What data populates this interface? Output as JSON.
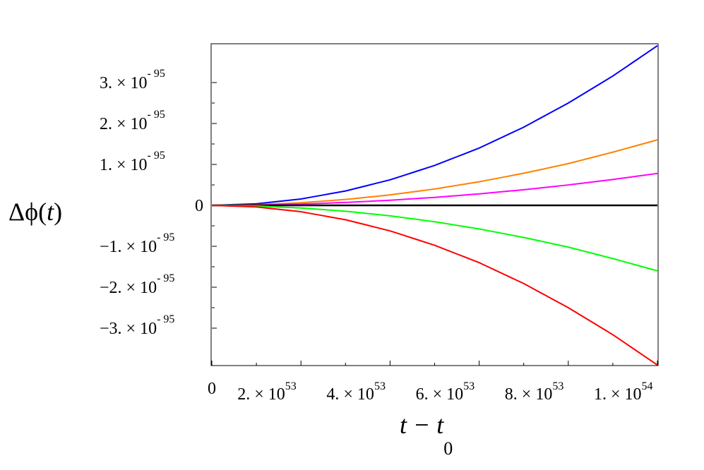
{
  "chart_data": {
    "type": "line",
    "title": "",
    "xlabel": {
      "main": "t − t",
      "subscript": "0"
    },
    "ylabel": {
      "prefix": "Δϕ(",
      "var": "t",
      "suffix": ")"
    },
    "xlim": [
      0,
      1e+54
    ],
    "ylim": [
      -3.9e-95,
      3.9e-95
    ],
    "grid": false,
    "legend": "none",
    "x_ticks": [
      {
        "value": 0,
        "mantissa": "0",
        "base": "",
        "exponent": ""
      },
      {
        "value": 2e+53,
        "mantissa": "2. × ",
        "base": "10",
        "exponent": "53"
      },
      {
        "value": 4e+53,
        "mantissa": "4. × ",
        "base": "10",
        "exponent": "53"
      },
      {
        "value": 6e+53,
        "mantissa": "6. × ",
        "base": "10",
        "exponent": "53"
      },
      {
        "value": 8e+53,
        "mantissa": "8. × ",
        "base": "10",
        "exponent": "53"
      },
      {
        "value": 1e+54,
        "mantissa": "1. × ",
        "base": "10",
        "exponent": "54"
      }
    ],
    "y_ticks": [
      {
        "value": 3e-95,
        "mantissa": "3. × ",
        "base": "10",
        "exponent": "- 95"
      },
      {
        "value": 2e-95,
        "mantissa": "2. × ",
        "base": "10",
        "exponent": "- 95"
      },
      {
        "value": 1e-95,
        "mantissa": "1. × ",
        "base": "10",
        "exponent": "- 95"
      },
      {
        "value": 0,
        "mantissa": "0",
        "base": "",
        "exponent": ""
      },
      {
        "value": -1e-95,
        "mantissa": "−1. × ",
        "base": "10",
        "exponent": "- 95"
      },
      {
        "value": -2e-95,
        "mantissa": "−2. × ",
        "base": "10",
        "exponent": "- 95"
      },
      {
        "value": -3e-95,
        "mantissa": "−3. × ",
        "base": "10",
        "exponent": "- 95"
      }
    ],
    "series": [
      {
        "color": "#0000ff",
        "x": [
          0,
          1e+53,
          2e+53,
          3e+53,
          4e+53,
          5e+53,
          6e+53,
          7e+53,
          8e+53,
          9e+53,
          1e+54
        ],
        "y": [
          0,
          3.9e-97,
          1.56e-96,
          3.51e-96,
          6.24e-96,
          9.75e-96,
          1.4e-95,
          1.91e-95,
          2.5e-95,
          3.16e-95,
          3.9e-95
        ]
      },
      {
        "color": "#ff8000",
        "x": [
          0,
          1e+53,
          2e+53,
          3e+53,
          4e+53,
          5e+53,
          6e+53,
          7e+53,
          8e+53,
          9e+53,
          1e+54
        ],
        "y": [
          0,
          1.6e-97,
          6.4e-97,
          1.44e-96,
          2.56e-96,
          4e-96,
          5.76e-96,
          7.84e-96,
          1.02e-95,
          1.3e-95,
          1.6e-95
        ]
      },
      {
        "color": "#ff00ff",
        "x": [
          0,
          1e+53,
          2e+53,
          3e+53,
          4e+53,
          5e+53,
          6e+53,
          7e+53,
          8e+53,
          9e+53,
          1e+54
        ],
        "y": [
          0,
          7.8e-98,
          3.12e-97,
          7.02e-97,
          1.25e-96,
          1.95e-96,
          2.81e-96,
          3.82e-96,
          4.99e-96,
          6.32e-96,
          7.8e-96
        ]
      },
      {
        "color": "#000000",
        "x": [
          0,
          1e+54
        ],
        "y": [
          0,
          0
        ]
      },
      {
        "color": "#00ff00",
        "x": [
          0,
          1e+53,
          2e+53,
          3e+53,
          4e+53,
          5e+53,
          6e+53,
          7e+53,
          8e+53,
          9e+53,
          1e+54
        ],
        "y": [
          0,
          -1.6e-97,
          -6.4e-97,
          -1.44e-96,
          -2.56e-96,
          -4e-96,
          -5.76e-96,
          -7.84e-96,
          -1.02e-95,
          -1.3e-95,
          -1.6e-95
        ]
      },
      {
        "color": "#ff0000",
        "x": [
          0,
          1e+53,
          2e+53,
          3e+53,
          4e+53,
          5e+53,
          6e+53,
          7e+53,
          8e+53,
          9e+53,
          1e+54
        ],
        "y": [
          0,
          -3.9e-97,
          -1.56e-96,
          -3.51e-96,
          -6.24e-96,
          -9.75e-96,
          -1.4e-95,
          -1.91e-95,
          -2.5e-95,
          -3.16e-95,
          -3.9e-95
        ]
      }
    ]
  }
}
